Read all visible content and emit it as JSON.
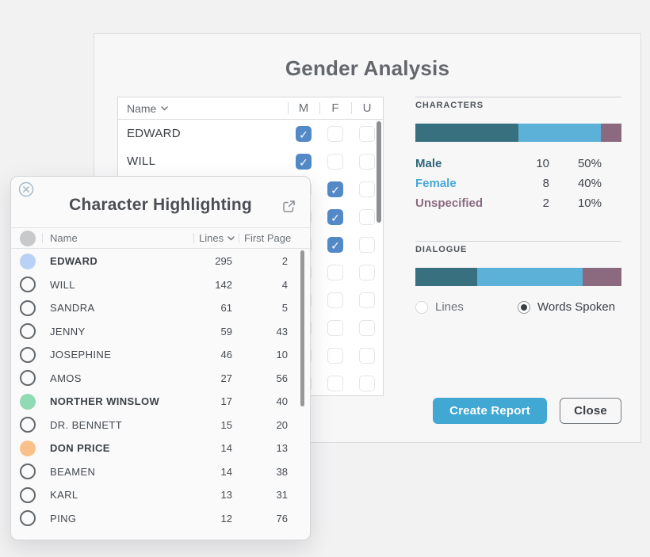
{
  "gender_analysis": {
    "title": "Gender Analysis",
    "table": {
      "name_header": "Name",
      "columns": [
        "M",
        "F",
        "U"
      ],
      "checkbox_color": "#5389c7",
      "rows": [
        {
          "name": "EDWARD",
          "m": true,
          "f": false,
          "u": false
        },
        {
          "name": "WILL",
          "m": true,
          "f": false,
          "u": false
        },
        {
          "name": "",
          "m": false,
          "f": true,
          "u": false
        },
        {
          "name": "",
          "m": false,
          "f": true,
          "u": false
        },
        {
          "name": "",
          "m": false,
          "f": true,
          "u": false
        },
        {
          "name": "",
          "m": false,
          "f": false,
          "u": false
        },
        {
          "name": "",
          "m": false,
          "f": false,
          "u": false
        },
        {
          "name": "",
          "m": false,
          "f": false,
          "u": false
        },
        {
          "name": "",
          "m": false,
          "f": false,
          "u": false
        },
        {
          "name": "",
          "m": false,
          "f": false,
          "u": false
        }
      ]
    },
    "characters_section": {
      "label": "CHARACTERS",
      "bar": [
        {
          "name": "male",
          "color": "#39707f",
          "pct": 50
        },
        {
          "name": "female",
          "color": "#5cb1d8",
          "pct": 40
        },
        {
          "name": "unspecified",
          "color": "#8b6a80",
          "pct": 10
        }
      ],
      "stats": [
        {
          "label": "Male",
          "count": "10",
          "pct": "50%",
          "color": "#2f6779"
        },
        {
          "label": "Female",
          "count": "8",
          "pct": "40%",
          "color": "#47a8d6"
        },
        {
          "label": "Unspecified",
          "count": "2",
          "pct": "10%",
          "color": "#8b6a80"
        }
      ]
    },
    "dialogue_section": {
      "label": "DIALOGUE",
      "bar": [
        {
          "name": "male",
          "color": "#39707f",
          "pct": 30
        },
        {
          "name": "female",
          "color": "#5cb1d8",
          "pct": 51
        },
        {
          "name": "unspecified",
          "color": "#8b6a80",
          "pct": 19
        }
      ],
      "options": [
        {
          "label": "Lines",
          "selected": false
        },
        {
          "label": "Words Spoken",
          "selected": true
        }
      ]
    },
    "buttons": {
      "create_report": "Create Report",
      "close": "Close",
      "primary_color": "#41a7d3"
    }
  },
  "character_highlighting": {
    "title": "Character Highlighting",
    "columns": {
      "name": "Name",
      "lines": "Lines",
      "first_page": "First Page"
    },
    "rows": [
      {
        "name": "EDWARD",
        "lines": "295",
        "first_page": "2",
        "filled": true,
        "color": "#b9d1f5"
      },
      {
        "name": "WILL",
        "lines": "142",
        "first_page": "4",
        "filled": false
      },
      {
        "name": "SANDRA",
        "lines": "61",
        "first_page": "5",
        "filled": false
      },
      {
        "name": "JENNY",
        "lines": "59",
        "first_page": "43",
        "filled": false
      },
      {
        "name": "JOSEPHINE",
        "lines": "46",
        "first_page": "10",
        "filled": false
      },
      {
        "name": "AMOS",
        "lines": "27",
        "first_page": "56",
        "filled": false
      },
      {
        "name": "NORTHER WINSLOW",
        "lines": "17",
        "first_page": "40",
        "filled": true,
        "color": "#90dbb3"
      },
      {
        "name": "DR. BENNETT",
        "lines": "15",
        "first_page": "20",
        "filled": false
      },
      {
        "name": "DON PRICE",
        "lines": "14",
        "first_page": "13",
        "filled": true,
        "color": "#f9c189"
      },
      {
        "name": "BEAMEN",
        "lines": "14",
        "first_page": "38",
        "filled": false
      },
      {
        "name": "KARL",
        "lines": "13",
        "first_page": "31",
        "filled": false
      },
      {
        "name": "PING",
        "lines": "12",
        "first_page": "76",
        "filled": false
      }
    ]
  }
}
